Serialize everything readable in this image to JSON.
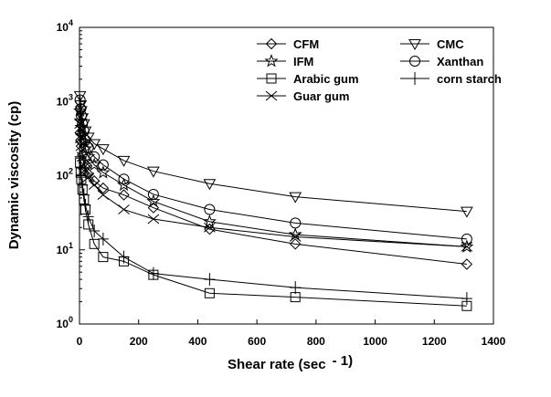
{
  "chart_data": {
    "type": "line",
    "title": "",
    "xlabel": "Shear rate (sec",
    "xlabel_sup": "- 1)",
    "ylabel": "Dynamic viscosity (cp)",
    "x_scale": "linear",
    "y_scale": "log",
    "xlim": [
      0,
      1400
    ],
    "ylim": [
      1,
      10000
    ],
    "x_ticks": [
      0,
      200,
      400,
      600,
      800,
      1000,
      1200,
      1400
    ],
    "x_tick_labels": [
      "0",
      "200",
      "400",
      "600",
      "800",
      "1000",
      "1200",
      "1400"
    ],
    "y_ticks": [
      1,
      10,
      100,
      1000,
      10000
    ],
    "y_tick_labels": [
      {
        "base": "10",
        "exp": "0"
      },
      {
        "base": "10",
        "exp": "1"
      },
      {
        "base": "10",
        "exp": "2"
      },
      {
        "base": "10",
        "exp": "3"
      },
      {
        "base": "10",
        "exp": "4"
      }
    ],
    "grid": false,
    "legend_position": "top-right",
    "series": [
      {
        "name": "CFM",
        "marker": "diamond",
        "x": [
          2,
          4,
          6,
          10,
          15,
          20,
          30,
          50,
          80,
          150,
          250,
          440,
          730,
          1310
        ],
        "y": [
          380,
          300,
          250,
          190,
          150,
          130,
          105,
          85,
          68,
          55,
          37,
          19,
          12,
          6.4
        ]
      },
      {
        "name": "IFM",
        "marker": "star",
        "x": [
          2,
          4,
          6,
          10,
          15,
          20,
          30,
          50,
          80,
          150,
          250,
          440,
          730,
          1310
        ],
        "y": [
          750,
          550,
          450,
          350,
          290,
          230,
          180,
          140,
          110,
          75,
          45,
          24,
          16,
          11
        ]
      },
      {
        "name": "Arabic gum",
        "marker": "square",
        "x": [
          2,
          4,
          6,
          10,
          15,
          20,
          30,
          50,
          80,
          150,
          250,
          440,
          730,
          1310
        ],
        "y": [
          150,
          110,
          90,
          65,
          48,
          35,
          22,
          12,
          8,
          7,
          4.6,
          2.6,
          2.3,
          1.75
        ]
      },
      {
        "name": "Guar gum",
        "marker": "x",
        "x": [
          2,
          4,
          6,
          10,
          15,
          20,
          30,
          50,
          80,
          150,
          250,
          440,
          730,
          1310
        ],
        "y": [
          500,
          320,
          250,
          180,
          140,
          120,
          95,
          75,
          55,
          35,
          26,
          20,
          15,
          11
        ]
      },
      {
        "name": "CMC",
        "marker": "triangle-down",
        "x": [
          2,
          4,
          6,
          10,
          15,
          20,
          30,
          50,
          80,
          150,
          250,
          440,
          730,
          1310
        ],
        "y": [
          1200,
          900,
          750,
          600,
          500,
          400,
          330,
          270,
          230,
          160,
          115,
          78,
          52,
          33
        ]
      },
      {
        "name": "Xanthan",
        "marker": "circle",
        "x": [
          2,
          4,
          6,
          10,
          15,
          20,
          30,
          50,
          80,
          150,
          250,
          440,
          730,
          1310
        ],
        "y": [
          1050,
          800,
          650,
          500,
          400,
          300,
          240,
          180,
          140,
          90,
          56,
          35,
          23,
          14
        ]
      },
      {
        "name": "corn starch",
        "marker": "plus",
        "x": [
          2,
          4,
          6,
          10,
          15,
          20,
          30,
          50,
          80,
          150,
          250,
          440,
          730,
          1310
        ],
        "y": [
          180,
          130,
          100,
          75,
          55,
          40,
          28,
          18,
          14,
          8,
          4.8,
          4,
          3.1,
          2.2
        ]
      }
    ]
  }
}
